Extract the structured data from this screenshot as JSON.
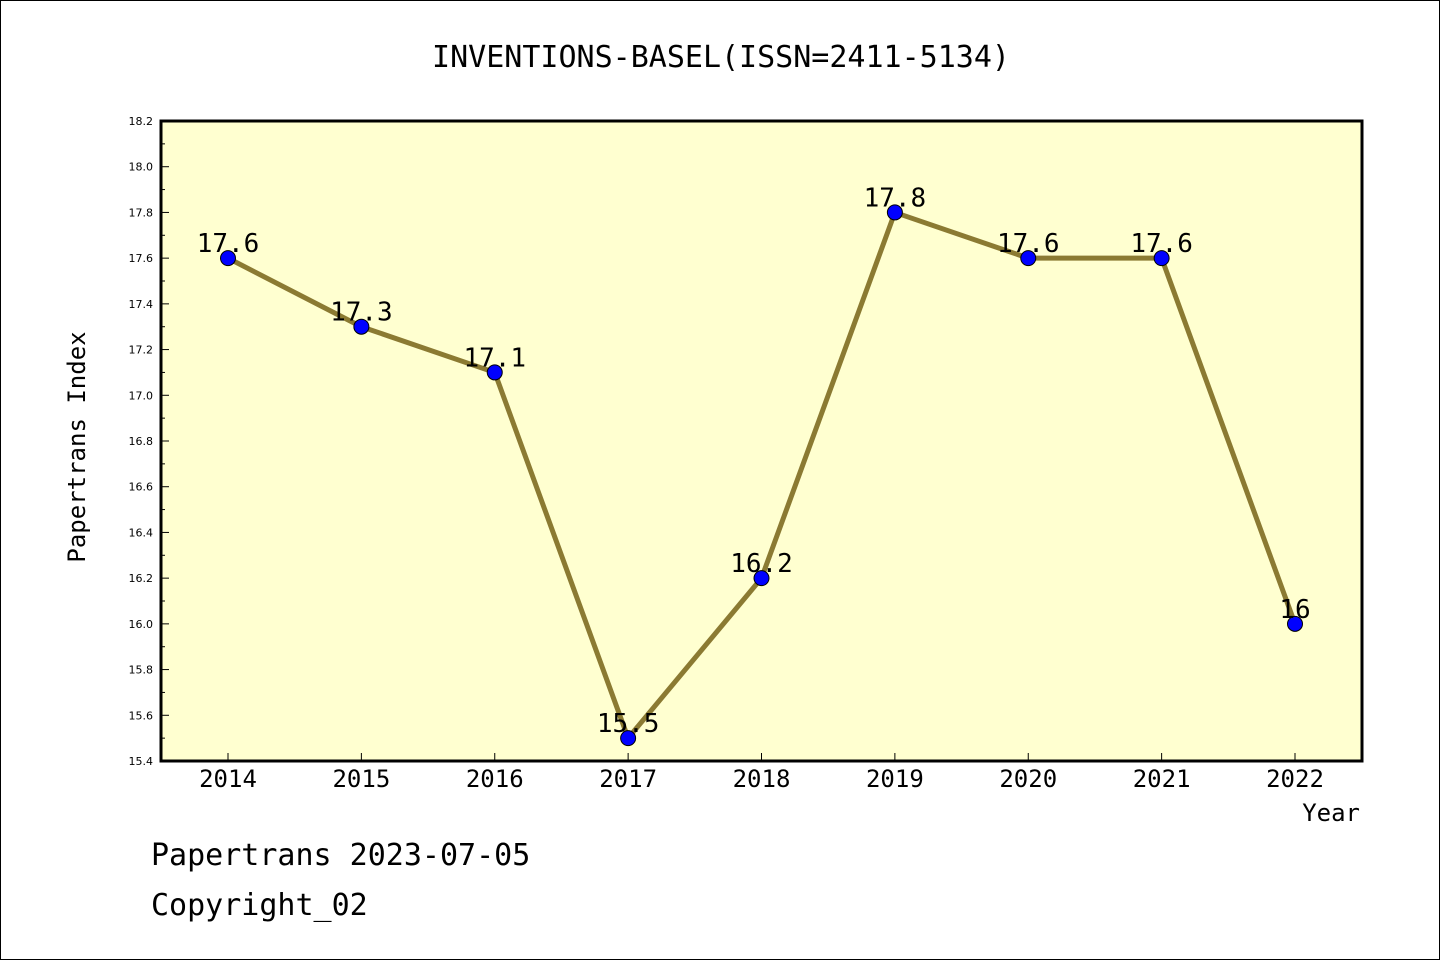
{
  "chart_data": {
    "type": "line",
    "title": "INVENTIONS-BASEL(ISSN=2411-5134)",
    "xlabel": "Year",
    "ylabel": "Papertrans Index",
    "categories": [
      "2014",
      "2015",
      "2016",
      "2017",
      "2018",
      "2019",
      "2020",
      "2021",
      "2022"
    ],
    "values": [
      17.6,
      17.3,
      17.1,
      15.5,
      16.2,
      17.8,
      17.6,
      17.6,
      16.0
    ],
    "data_labels": [
      "17.6",
      "17.3",
      "17.1",
      "15.5",
      "16.2",
      "17.8",
      "17.6",
      "17.6",
      "16"
    ],
    "ylim": [
      15.4,
      18.2
    ],
    "yticks": [
      "15.4",
      "15.6",
      "15.8",
      "16.0",
      "16.2",
      "16.4",
      "16.6",
      "16.8",
      "17.0",
      "17.2",
      "17.4",
      "17.6",
      "17.8",
      "18.0",
      "18.2"
    ],
    "grid": false,
    "colors": {
      "plot_background": "#ffffd0",
      "line": "#8b7a32",
      "marker": "#0000ff"
    }
  },
  "footer": {
    "date_line": "Papertrans 2023-07-05",
    "copyright_line": "Copyright_02"
  }
}
